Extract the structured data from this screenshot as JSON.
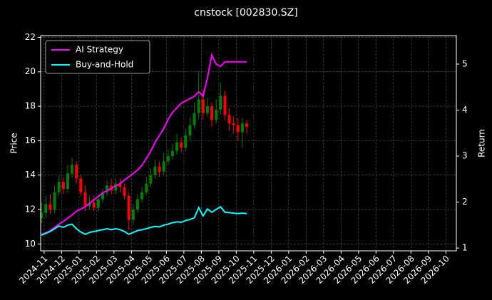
{
  "chart_data": {
    "type": "candlestick",
    "title": "cnstock [002830.SZ]",
    "ylabel": "Price",
    "y2label": "Return",
    "x": [
      -0.15,
      0.1,
      0.35,
      0.6,
      0.85,
      1.1,
      1.35,
      1.6,
      1.85,
      2.1,
      2.35,
      2.6,
      2.85,
      3.1,
      3.35,
      3.6,
      3.85,
      4.1,
      4.35,
      4.6,
      4.85,
      5.1,
      5.35,
      5.6,
      5.85,
      6.1,
      6.35,
      6.6,
      6.85,
      7.1,
      7.35,
      7.6,
      7.85,
      8.1,
      8.35,
      8.6,
      8.85,
      9.1,
      9.35,
      9.6,
      9.85,
      10.1,
      10.35,
      10.6,
      10.85,
      11.1,
      11.35,
      11.6
    ],
    "open": [
      11.5,
      11.8,
      12.3,
      12.0,
      13.0,
      13.6,
      13.2,
      14.1,
      14.6,
      13.8,
      13.0,
      12.2,
      12.4,
      12.1,
      12.6,
      13.0,
      13.4,
      13.1,
      13.5,
      13.3,
      12.8,
      11.4,
      12.0,
      12.6,
      13.0,
      13.5,
      14.0,
      14.5,
      14.2,
      14.8,
      15.1,
      15.4,
      15.9,
      15.6,
      16.3,
      16.9,
      17.6,
      18.4,
      17.6,
      18.0,
      17.2,
      17.8,
      18.6,
      17.5,
      17.0,
      16.9,
      16.5,
      17.0
    ],
    "high": [
      12.4,
      12.8,
      12.9,
      13.4,
      14.0,
      13.9,
      14.6,
      15.0,
      14.8,
      14.0,
      13.4,
      12.8,
      12.8,
      12.9,
      13.2,
      13.7,
      13.8,
      13.8,
      13.8,
      13.5,
      13.0,
      12.3,
      12.9,
      13.3,
      13.9,
      14.4,
      14.9,
      14.8,
      15.3,
      15.5,
      15.8,
      16.4,
      16.2,
      16.7,
      17.4,
      18.2,
      20.0,
      19.0,
      18.5,
      18.2,
      18.4,
      19.4,
      18.9,
      17.9,
      17.4,
      17.3,
      17.3,
      17.2
    ],
    "low": [
      11.2,
      11.5,
      11.7,
      11.8,
      12.8,
      12.9,
      13.0,
      13.8,
      13.5,
      12.8,
      11.9,
      12.0,
      11.9,
      11.9,
      12.4,
      12.8,
      12.9,
      12.9,
      13.0,
      12.6,
      10.8,
      11.1,
      11.8,
      12.4,
      12.8,
      13.3,
      13.8,
      13.9,
      14.0,
      14.6,
      14.9,
      15.2,
      15.3,
      15.4,
      16.0,
      16.7,
      17.3,
      17.2,
      17.4,
      16.8,
      17.0,
      17.5,
      17.2,
      16.6,
      16.4,
      16.0,
      15.6,
      16.4
    ],
    "close": [
      11.8,
      12.3,
      12.0,
      13.0,
      13.6,
      13.2,
      14.1,
      14.6,
      13.8,
      13.0,
      12.2,
      12.4,
      12.1,
      12.6,
      13.0,
      13.4,
      13.1,
      13.5,
      13.3,
      12.8,
      11.4,
      12.0,
      12.6,
      13.0,
      13.5,
      14.0,
      14.5,
      14.2,
      14.8,
      15.1,
      15.4,
      15.9,
      15.6,
      16.3,
      16.9,
      17.6,
      18.4,
      17.6,
      18.0,
      17.2,
      17.8,
      18.6,
      17.5,
      17.0,
      16.9,
      16.5,
      17.0,
      16.8
    ],
    "up_color": "#008000",
    "down_color": "#ff0000",
    "series": [
      {
        "name": "AI Strategy",
        "color": "#ff00ff",
        "axis": "y2",
        "values": [
          1.3,
          1.33,
          1.38,
          1.45,
          1.52,
          1.58,
          1.65,
          1.72,
          1.8,
          1.85,
          1.9,
          1.97,
          2.05,
          2.12,
          2.2,
          2.25,
          2.3,
          2.35,
          2.4,
          2.48,
          2.55,
          2.62,
          2.7,
          2.8,
          2.95,
          3.1,
          3.3,
          3.45,
          3.6,
          3.8,
          3.95,
          4.05,
          4.15,
          4.2,
          4.25,
          4.3,
          4.4,
          4.3,
          4.7,
          5.2,
          5.0,
          4.95,
          5.05,
          5.05,
          5.05,
          5.05,
          5.05,
          5.05
        ]
      },
      {
        "name": "Buy-and-Hold",
        "color": "#00ffff",
        "axis": "y2",
        "values": [
          1.28,
          1.32,
          1.36,
          1.42,
          1.48,
          1.45,
          1.5,
          1.52,
          1.42,
          1.35,
          1.3,
          1.34,
          1.36,
          1.38,
          1.4,
          1.42,
          1.4,
          1.42,
          1.4,
          1.36,
          1.3,
          1.34,
          1.38,
          1.4,
          1.42,
          1.45,
          1.47,
          1.46,
          1.5,
          1.52,
          1.55,
          1.57,
          1.56,
          1.6,
          1.62,
          1.66,
          1.88,
          1.7,
          1.85,
          1.78,
          1.84,
          1.9,
          1.78,
          1.77,
          1.76,
          1.75,
          1.76,
          1.75
        ]
      }
    ],
    "xlim": [
      -0.2,
      23.6
    ],
    "xticks": [
      {
        "value": 0,
        "label": "2024-11"
      },
      {
        "value": 1,
        "label": "2024-12"
      },
      {
        "value": 2,
        "label": "2025-01"
      },
      {
        "value": 3,
        "label": "2025-02"
      },
      {
        "value": 4,
        "label": "2025-03"
      },
      {
        "value": 5,
        "label": "2025-04"
      },
      {
        "value": 6,
        "label": "2025-05"
      },
      {
        "value": 7,
        "label": "2025-06"
      },
      {
        "value": 8,
        "label": "2025-07"
      },
      {
        "value": 9,
        "label": "2025-08"
      },
      {
        "value": 10,
        "label": "2025-09"
      },
      {
        "value": 11,
        "label": "2025-10"
      },
      {
        "value": 12,
        "label": "2025-11"
      },
      {
        "value": 13,
        "label": "2025-12"
      },
      {
        "value": 14,
        "label": "2026-01"
      },
      {
        "value": 15,
        "label": "2026-02"
      },
      {
        "value": 16,
        "label": "2026-03"
      },
      {
        "value": 17,
        "label": "2026-04"
      },
      {
        "value": 18,
        "label": "2026-05"
      },
      {
        "value": 19,
        "label": "2026-06"
      },
      {
        "value": 20,
        "label": "2026-07"
      },
      {
        "value": 21,
        "label": "2026-08"
      },
      {
        "value": 22,
        "label": "2026-09"
      },
      {
        "value": 23,
        "label": "2026-10"
      }
    ],
    "ylim": [
      9.6,
      22.1
    ],
    "yticks": [
      10,
      12,
      14,
      16,
      18,
      20,
      22
    ],
    "y2lim": [
      0.94,
      5.62
    ],
    "y2ticks": [
      1,
      2,
      3,
      4,
      5
    ],
    "grid": true,
    "legend": "upper left"
  }
}
